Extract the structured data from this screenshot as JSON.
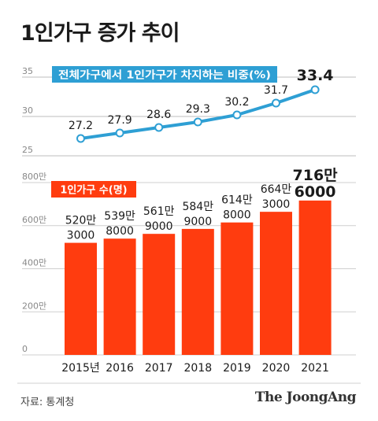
{
  "title": "1인가구 증가 추이",
  "source": "자료: 통계청",
  "brand": "The JoongAng",
  "colors": {
    "line": "#2e9fd4",
    "bar": "#ff3c0f",
    "axis_text": "#888888"
  },
  "chart_data": [
    {
      "type": "line",
      "legend_label": "전체가구에서 1인가구가 차지하는 비중(%)",
      "ylim": [
        25,
        35
      ],
      "yticks": [
        "35",
        "30",
        "25"
      ],
      "x": [
        "2015년",
        "2016",
        "2017",
        "2018",
        "2019",
        "2020",
        "2021"
      ],
      "values": [
        27.2,
        27.9,
        28.6,
        29.3,
        30.2,
        31.7,
        33.4
      ],
      "value_labels": [
        "27.2",
        "27.9",
        "28.6",
        "29.3",
        "30.2",
        "31.7",
        "33.4"
      ],
      "grid": true
    },
    {
      "type": "bar",
      "legend_label": "1인가구 수(명)",
      "ylim": [
        0,
        8000000
      ],
      "yticks": [
        "800만",
        "600만",
        "400만",
        "200만",
        "0"
      ],
      "categories": [
        "2015년",
        "2016",
        "2017",
        "2018",
        "2019",
        "2020",
        "2021"
      ],
      "values": [
        5203000,
        5398000,
        5619000,
        5849000,
        6148000,
        6643000,
        7166000
      ],
      "labels_top": [
        "520만",
        "539만",
        "561만",
        "584만",
        "614만",
        "664만",
        "716만"
      ],
      "labels_bottom": [
        "3000",
        "8000",
        "9000",
        "9000",
        "8000",
        "3000",
        "6000"
      ],
      "grid": true
    }
  ]
}
